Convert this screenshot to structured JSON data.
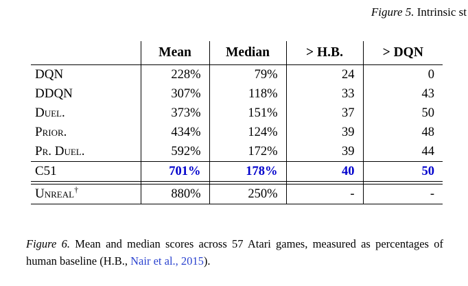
{
  "colors": {
    "c51": "#0000cc",
    "link": "#2b43cf"
  },
  "figure5_caption": {
    "label": "Figure 5.",
    "text": " Intrinsic st"
  },
  "table": {
    "columns": [
      "",
      "Mean",
      "Median",
      "> H.B.",
      "> DQN"
    ],
    "rows": [
      {
        "label": "DQN",
        "mean": "228%",
        "median": "79%",
        "hb": "24",
        "dqn": "0"
      },
      {
        "label": "DDQN",
        "mean": "307%",
        "median": "118%",
        "hb": "33",
        "dqn": "43"
      },
      {
        "label": "Duel.",
        "mean": "373%",
        "median": "151%",
        "hb": "37",
        "dqn": "50"
      },
      {
        "label": "Prior.",
        "mean": "434%",
        "median": "124%",
        "hb": "39",
        "dqn": "48"
      },
      {
        "label": "Pr. Duel.",
        "mean": "592%",
        "median": "172%",
        "hb": "39",
        "dqn": "44"
      },
      {
        "label": "C51",
        "mean": "701%",
        "median": "178%",
        "hb": "40",
        "dqn": "50",
        "highlight": true
      },
      {
        "label": "Unreal",
        "sup": "†",
        "mean": "880%",
        "median": "250%",
        "hb": "-",
        "dqn": "-"
      }
    ]
  },
  "figure6_caption": {
    "label": "Figure 6.",
    "text_before_link": " Mean and median scores across 57 Atari games, measured as percentages of human baseline (H.B., ",
    "link": "Nair et al., 2015",
    "text_after_link": ")."
  }
}
